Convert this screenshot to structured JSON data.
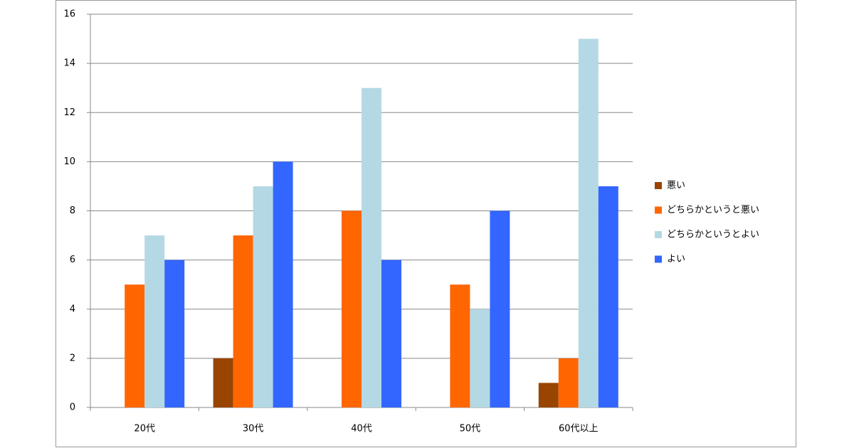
{
  "chart_data": {
    "type": "bar",
    "categories": [
      "20代",
      "30代",
      "40代",
      "50代",
      "60代以上"
    ],
    "series": [
      {
        "name": "悪い",
        "color": "#994400",
        "values": [
          0,
          2,
          0,
          0,
          1
        ]
      },
      {
        "name": "どちらかというと悪い",
        "color": "#ff6600",
        "values": [
          5,
          7,
          8,
          5,
          2
        ]
      },
      {
        "name": "どちらかというとよい",
        "color": "#b4d9e4",
        "values": [
          7,
          9,
          13,
          4,
          15
        ]
      },
      {
        "name": "よい",
        "color": "#3366ff",
        "values": [
          6,
          10,
          6,
          8,
          9
        ]
      }
    ],
    "ylim": [
      0,
      16
    ],
    "yticks": [
      0,
      2,
      4,
      6,
      8,
      10,
      12,
      14,
      16
    ],
    "grid": true,
    "legend": "right"
  }
}
